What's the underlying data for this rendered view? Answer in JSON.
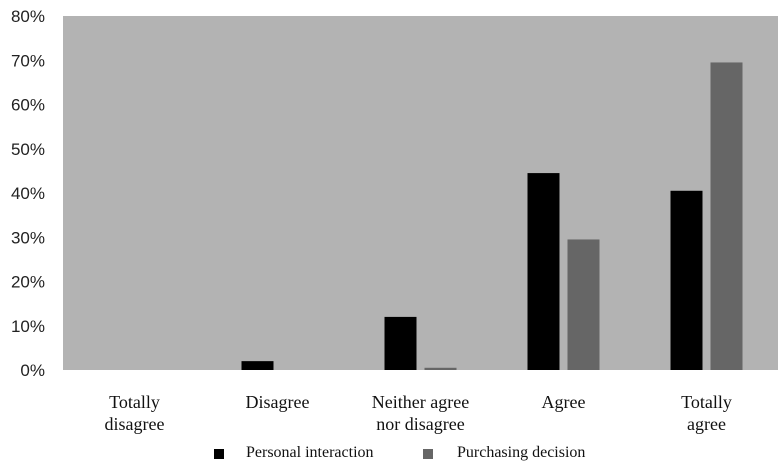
{
  "chart_data": {
    "type": "bar",
    "categories": [
      "Totally disagree",
      "Disagree",
      "Neither agree nor disagree",
      "Agree",
      "Totally agree"
    ],
    "category_label_lines": [
      [
        "Totally",
        "disagree"
      ],
      [
        "Disagree"
      ],
      [
        "Neither agree",
        "nor disagree"
      ],
      [
        "Agree"
      ],
      [
        "Totally",
        "agree"
      ]
    ],
    "series": [
      {
        "name": "Personal interaction",
        "values": [
          0,
          2,
          12,
          44.5,
          40.5
        ],
        "color": "#000000"
      },
      {
        "name": "Purchasing decision",
        "values": [
          0,
          0,
          0.5,
          29.5,
          69.5
        ],
        "color": "#666666"
      }
    ],
    "yticks": [
      "0%",
      "10%",
      "20%",
      "30%",
      "40%",
      "50%",
      "60%",
      "70%",
      "80%"
    ],
    "ylim": [
      0,
      80
    ],
    "title": "",
    "xlabel": "",
    "ylabel": "",
    "grid": false,
    "legend_position": "bottom",
    "plot_background": "#b3b3b3"
  }
}
